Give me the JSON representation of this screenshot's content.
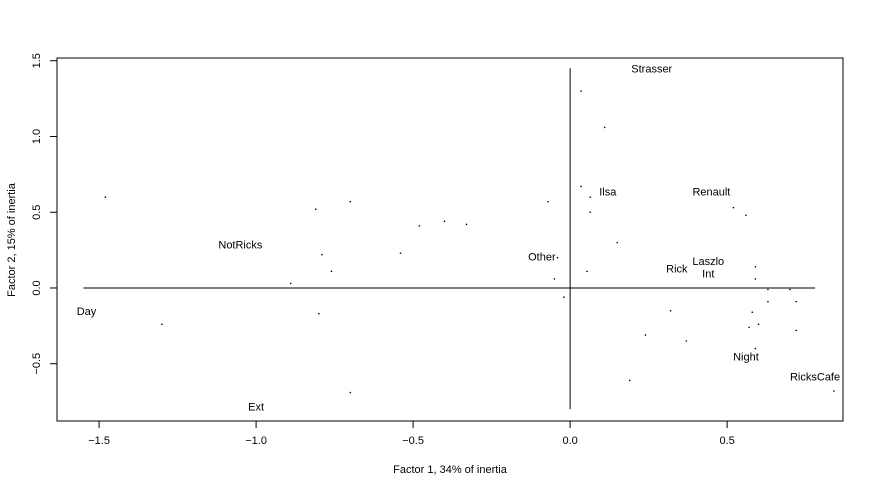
{
  "chart_data": {
    "type": "scatter",
    "xlabel": "Factor 1, 34% of inertia",
    "ylabel": "Factor 2, 15% of inertia",
    "xlim": [
      -1.634,
      0.869
    ],
    "ylim": [
      -0.878,
      1.518
    ],
    "xticks": [
      {
        "value": -1.5,
        "label": "−1.5"
      },
      {
        "value": -1,
        "label": "−1.0"
      },
      {
        "value": -0.5,
        "label": "−0.5"
      },
      {
        "value": 0,
        "label": "0.0"
      },
      {
        "value": 0.5,
        "label": "0.5"
      }
    ],
    "yticks": [
      {
        "value": -0.5,
        "label": "−0.5"
      },
      {
        "value": 0,
        "label": "0.0"
      },
      {
        "value": 0.5,
        "label": "0.5"
      },
      {
        "value": 1,
        "label": "1.0"
      },
      {
        "value": 1.5,
        "label": "1.5"
      }
    ],
    "color": "#000000",
    "x": [
      -1.48,
      -1.3,
      -0.81,
      -0.7,
      -0.79,
      -0.76,
      -0.89,
      -0.8,
      -0.54,
      -0.48,
      -0.4,
      -0.33,
      -0.7,
      -0.07,
      -0.05,
      -0.02,
      -0.04,
      0.035,
      0.11,
      0.035,
      0.064,
      0.064,
      0.15,
      0.054,
      0.19,
      0.24,
      0.32,
      0.37,
      0.52,
      0.56,
      0.59,
      0.59,
      0.63,
      0.63,
      0.7,
      0.72,
      0.58,
      0.6,
      0.57,
      0.72,
      0.59,
      0.84
    ],
    "y": [
      0.6,
      -0.24,
      0.52,
      0.57,
      0.22,
      0.11,
      0.03,
      -0.17,
      0.23,
      0.41,
      0.44,
      0.42,
      -0.69,
      0.57,
      0.06,
      -0.06,
      0.2,
      1.3,
      1.06,
      0.67,
      0.6,
      0.5,
      0.3,
      0.11,
      -0.61,
      -0.31,
      -0.15,
      -0.35,
      0.53,
      0.48,
      0.14,
      0.06,
      -0.01,
      -0.09,
      -0.01,
      -0.09,
      -0.16,
      -0.24,
      -0.26,
      -0.28,
      -0.4,
      -0.68
    ],
    "labels": [
      {
        "text": "Strasser",
        "x": 0.26,
        "y": 1.44
      },
      {
        "text": "Ilsa",
        "x": 0.12,
        "y": 0.63
      },
      {
        "text": "Renault",
        "x": 0.45,
        "y": 0.63
      },
      {
        "text": "NotRicks",
        "x": -1.05,
        "y": 0.28
      },
      {
        "text": "Other",
        "x": -0.09,
        "y": 0.2
      },
      {
        "text": "Rick",
        "x": 0.34,
        "y": 0.12
      },
      {
        "text": "Laszlo",
        "x": 0.44,
        "y": 0.17
      },
      {
        "text": "Int",
        "x": 0.44,
        "y": 0.09
      },
      {
        "text": "Day",
        "x": -1.54,
        "y": -0.16
      },
      {
        "text": "Night",
        "x": 0.56,
        "y": -0.46
      },
      {
        "text": "RicksCafe",
        "x": 0.78,
        "y": -0.59
      },
      {
        "text": "Ext",
        "x": -1.0,
        "y": -0.79
      }
    ],
    "hline": {
      "y": 0,
      "x": [
        -1.55,
        0.78
      ]
    },
    "vline": {
      "x": 0,
      "y": [
        -0.8,
        1.45
      ]
    }
  }
}
